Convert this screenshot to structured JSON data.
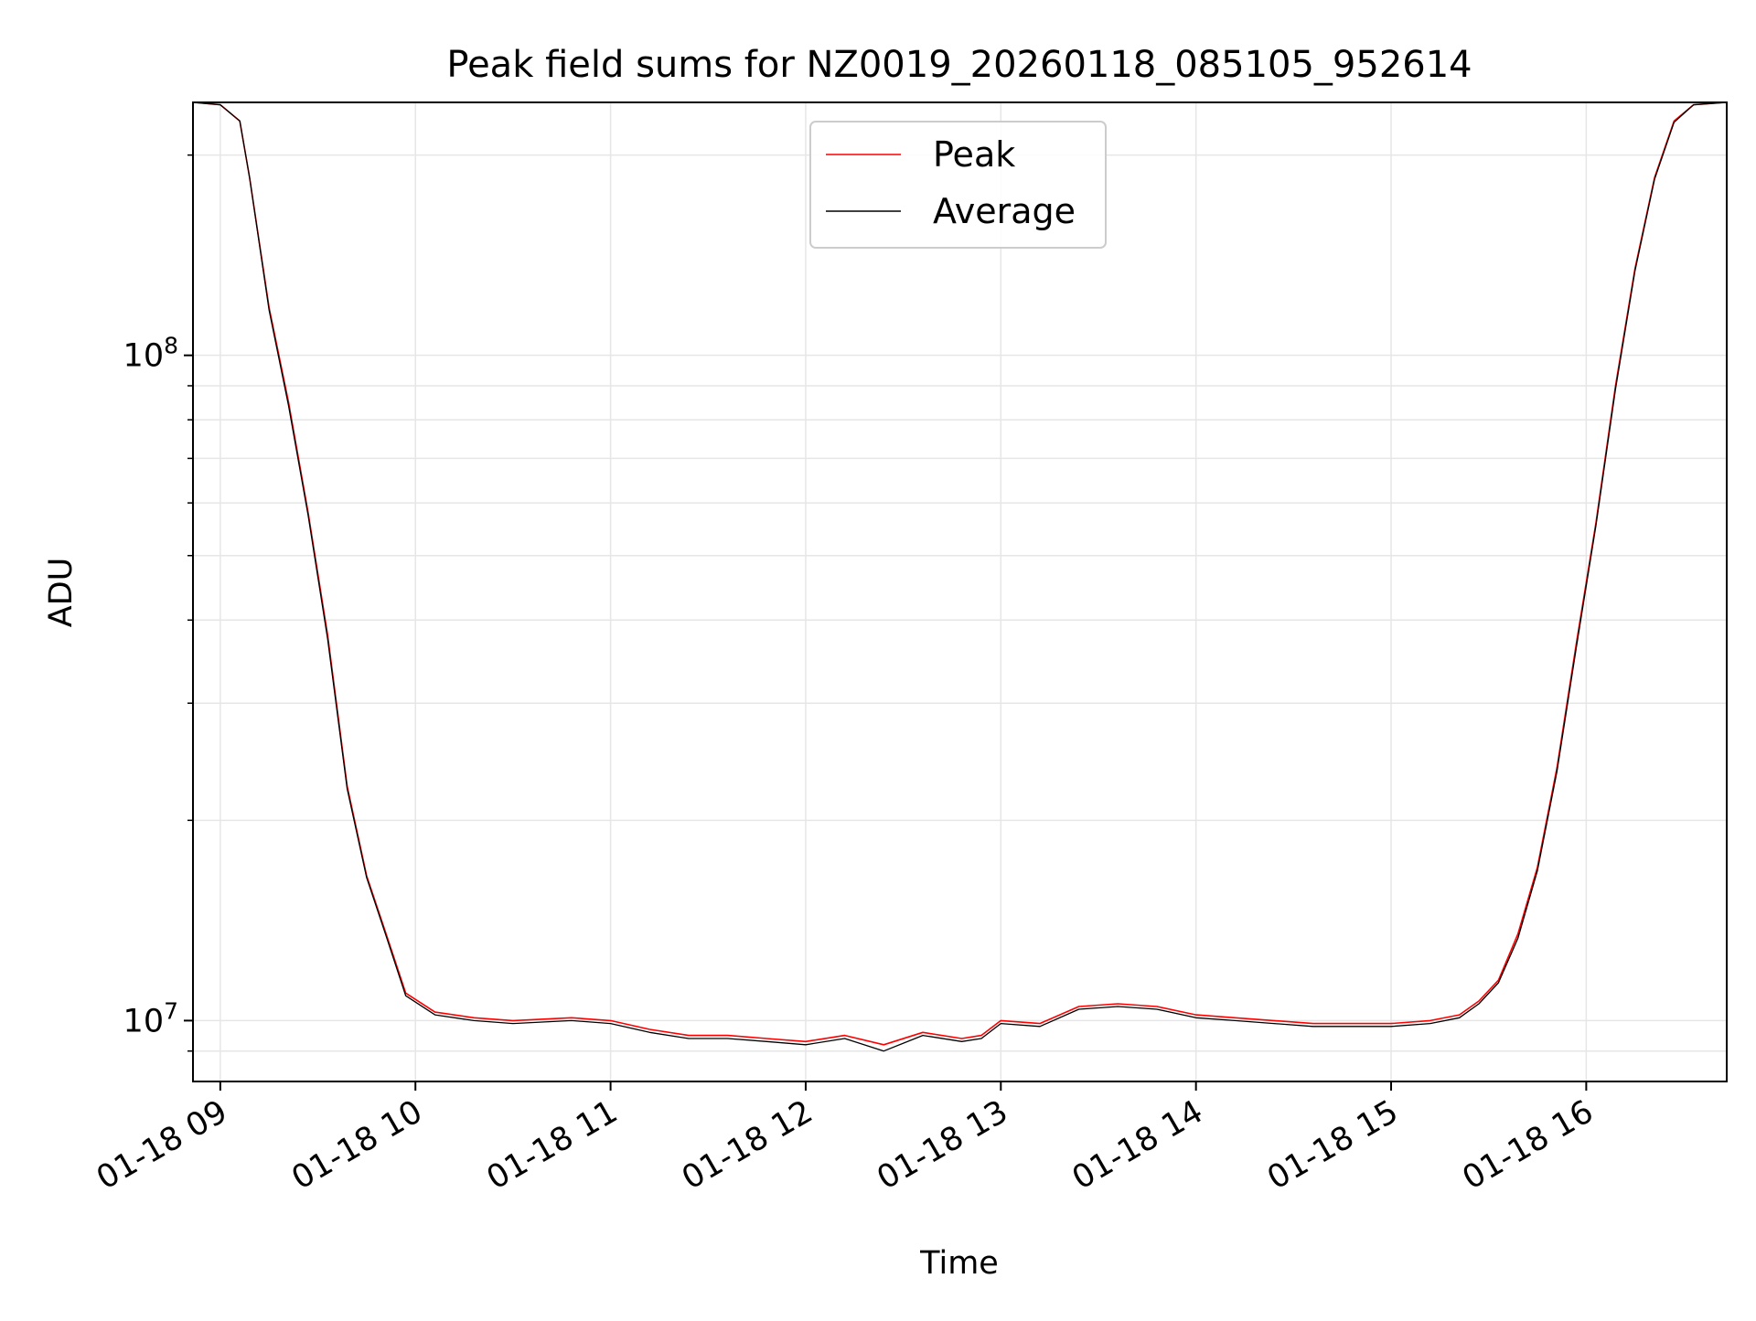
{
  "chart_data": {
    "type": "line",
    "title": "Peak field sums for NZ0019_20260118_085105_952614",
    "xlabel": "Time",
    "ylabel": "ADU",
    "yscale": "log",
    "xlim": [
      8.86,
      16.72
    ],
    "ylim": [
      8100000,
      240000000
    ],
    "grid": true,
    "legend_position": "upper-center",
    "x_ticks": [
      {
        "value": 9,
        "label": "01-18 09"
      },
      {
        "value": 10,
        "label": "01-18 10"
      },
      {
        "value": 11,
        "label": "01-18 11"
      },
      {
        "value": 12,
        "label": "01-18 12"
      },
      {
        "value": 13,
        "label": "01-18 13"
      },
      {
        "value": 14,
        "label": "01-18 14"
      },
      {
        "value": 15,
        "label": "01-18 15"
      },
      {
        "value": 16,
        "label": "01-18 16"
      }
    ],
    "y_ticks": [
      {
        "value": 10000000,
        "base": "10",
        "exp": "7"
      },
      {
        "value": 100000000,
        "base": "10",
        "exp": "8"
      }
    ],
    "x_unit": "hours since 01-18 00:00",
    "series": [
      {
        "name": "Peak",
        "color": "#ff0000",
        "x": [
          8.86,
          9.0,
          9.1,
          9.15,
          9.25,
          9.35,
          9.45,
          9.55,
          9.65,
          9.75,
          9.85,
          9.95,
          10.1,
          10.3,
          10.5,
          10.8,
          11.0,
          11.2,
          11.4,
          11.6,
          11.8,
          12.0,
          12.2,
          12.4,
          12.6,
          12.8,
          12.9,
          13.0,
          13.2,
          13.4,
          13.6,
          13.8,
          14.0,
          14.2,
          14.4,
          14.6,
          14.8,
          15.0,
          15.2,
          15.35,
          15.45,
          15.55,
          15.65,
          15.75,
          15.85,
          15.95,
          16.05,
          16.15,
          16.25,
          16.35,
          16.45,
          16.55,
          16.72
        ],
        "y": [
          240000000,
          238000000,
          225000000,
          185000000,
          118000000,
          85000000,
          58000000,
          38000000,
          22500000,
          16500000,
          13500000,
          11000000,
          10300000,
          10100000,
          10000000,
          10100000,
          10000000,
          9700000,
          9500000,
          9500000,
          9400000,
          9300000,
          9500000,
          9200000,
          9600000,
          9400000,
          9500000,
          10000000,
          9900000,
          10500000,
          10600000,
          10500000,
          10200000,
          10100000,
          10000000,
          9900000,
          9900000,
          9900000,
          10000000,
          10200000,
          10700000,
          11500000,
          13500000,
          17000000,
          24000000,
          37000000,
          56000000,
          90000000,
          135000000,
          185000000,
          225000000,
          238000000,
          240000000
        ]
      },
      {
        "name": "Average",
        "color": "#000000",
        "x": [
          8.86,
          9.0,
          9.1,
          9.15,
          9.25,
          9.35,
          9.45,
          9.55,
          9.65,
          9.75,
          9.85,
          9.95,
          10.1,
          10.3,
          10.5,
          10.8,
          11.0,
          11.2,
          11.4,
          11.6,
          11.8,
          12.0,
          12.2,
          12.4,
          12.6,
          12.8,
          12.9,
          13.0,
          13.2,
          13.4,
          13.6,
          13.8,
          14.0,
          14.2,
          14.4,
          14.6,
          14.8,
          15.0,
          15.2,
          15.35,
          15.45,
          15.55,
          15.65,
          15.75,
          15.85,
          15.95,
          16.05,
          16.15,
          16.25,
          16.35,
          16.45,
          16.55,
          16.72
        ],
        "y": [
          240000000,
          238000000,
          225000000,
          185000000,
          117000000,
          84000000,
          57500000,
          37500000,
          22300000,
          16400000,
          13400000,
          10900000,
          10200000,
          10000000,
          9900000,
          10000000,
          9900000,
          9600000,
          9400000,
          9400000,
          9300000,
          9200000,
          9400000,
          9000000,
          9500000,
          9300000,
          9400000,
          9900000,
          9800000,
          10400000,
          10500000,
          10400000,
          10100000,
          10000000,
          9900000,
          9800000,
          9800000,
          9800000,
          9900000,
          10100000,
          10600000,
          11400000,
          13300000,
          16800000,
          23700000,
          36500000,
          55500000,
          89000000,
          134000000,
          184000000,
          224000000,
          238000000,
          240000000
        ]
      }
    ]
  }
}
